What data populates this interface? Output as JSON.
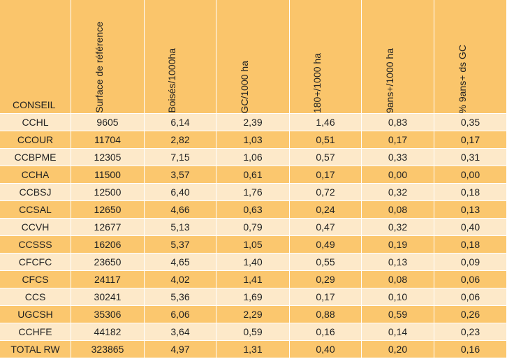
{
  "table": {
    "headers": [
      "CONSEIL",
      "Surface de référence",
      "Boisés/1000ha",
      "GC/1000 ha",
      "180+/1000 ha",
      "9ans+/1000 ha",
      "% 9ans+ ds GC"
    ],
    "rows": [
      [
        "CCHL",
        "9605",
        "6,14",
        "2,39",
        "1,46",
        "0,83",
        "0,35"
      ],
      [
        "CCOUR",
        "11704",
        "2,82",
        "1,03",
        "0,51",
        "0,17",
        "0,17"
      ],
      [
        "CCBPME",
        "12305",
        "7,15",
        "1,06",
        "0,57",
        "0,33",
        "0,31"
      ],
      [
        "CCHA",
        "11500",
        "3,57",
        "0,61",
        "0,17",
        "0,00",
        "0,00"
      ],
      [
        "CCBSJ",
        "12500",
        "6,40",
        "1,76",
        "0,72",
        "0,32",
        "0,18"
      ],
      [
        "CCSAL",
        "12650",
        "4,66",
        "0,63",
        "0,24",
        "0,08",
        "0,13"
      ],
      [
        "CCVH",
        "12677",
        "5,13",
        "0,79",
        "0,47",
        "0,32",
        "0,40"
      ],
      [
        "CCSSS",
        "16206",
        "5,37",
        "1,05",
        "0,49",
        "0,19",
        "0,18"
      ],
      [
        "CFCFC",
        "23650",
        "4,65",
        "1,40",
        "0,55",
        "0,13",
        "0,09"
      ],
      [
        "CFCS",
        "24117",
        "4,02",
        "1,41",
        "0,29",
        "0,08",
        "0,06"
      ],
      [
        "CCS",
        "30241",
        "5,36",
        "1,69",
        "0,17",
        "0,10",
        "0,06"
      ],
      [
        "UGCSH",
        "35306",
        "6,06",
        "2,29",
        "0,88",
        "0,59",
        "0,26"
      ],
      [
        "CCHFE",
        "44182",
        "3,64",
        "0,59",
        "0,16",
        "0,14",
        "0,23"
      ],
      [
        "TOTAL RW",
        "323865",
        "4,97",
        "1,31",
        "0,40",
        "0,20",
        "0,16"
      ]
    ]
  }
}
